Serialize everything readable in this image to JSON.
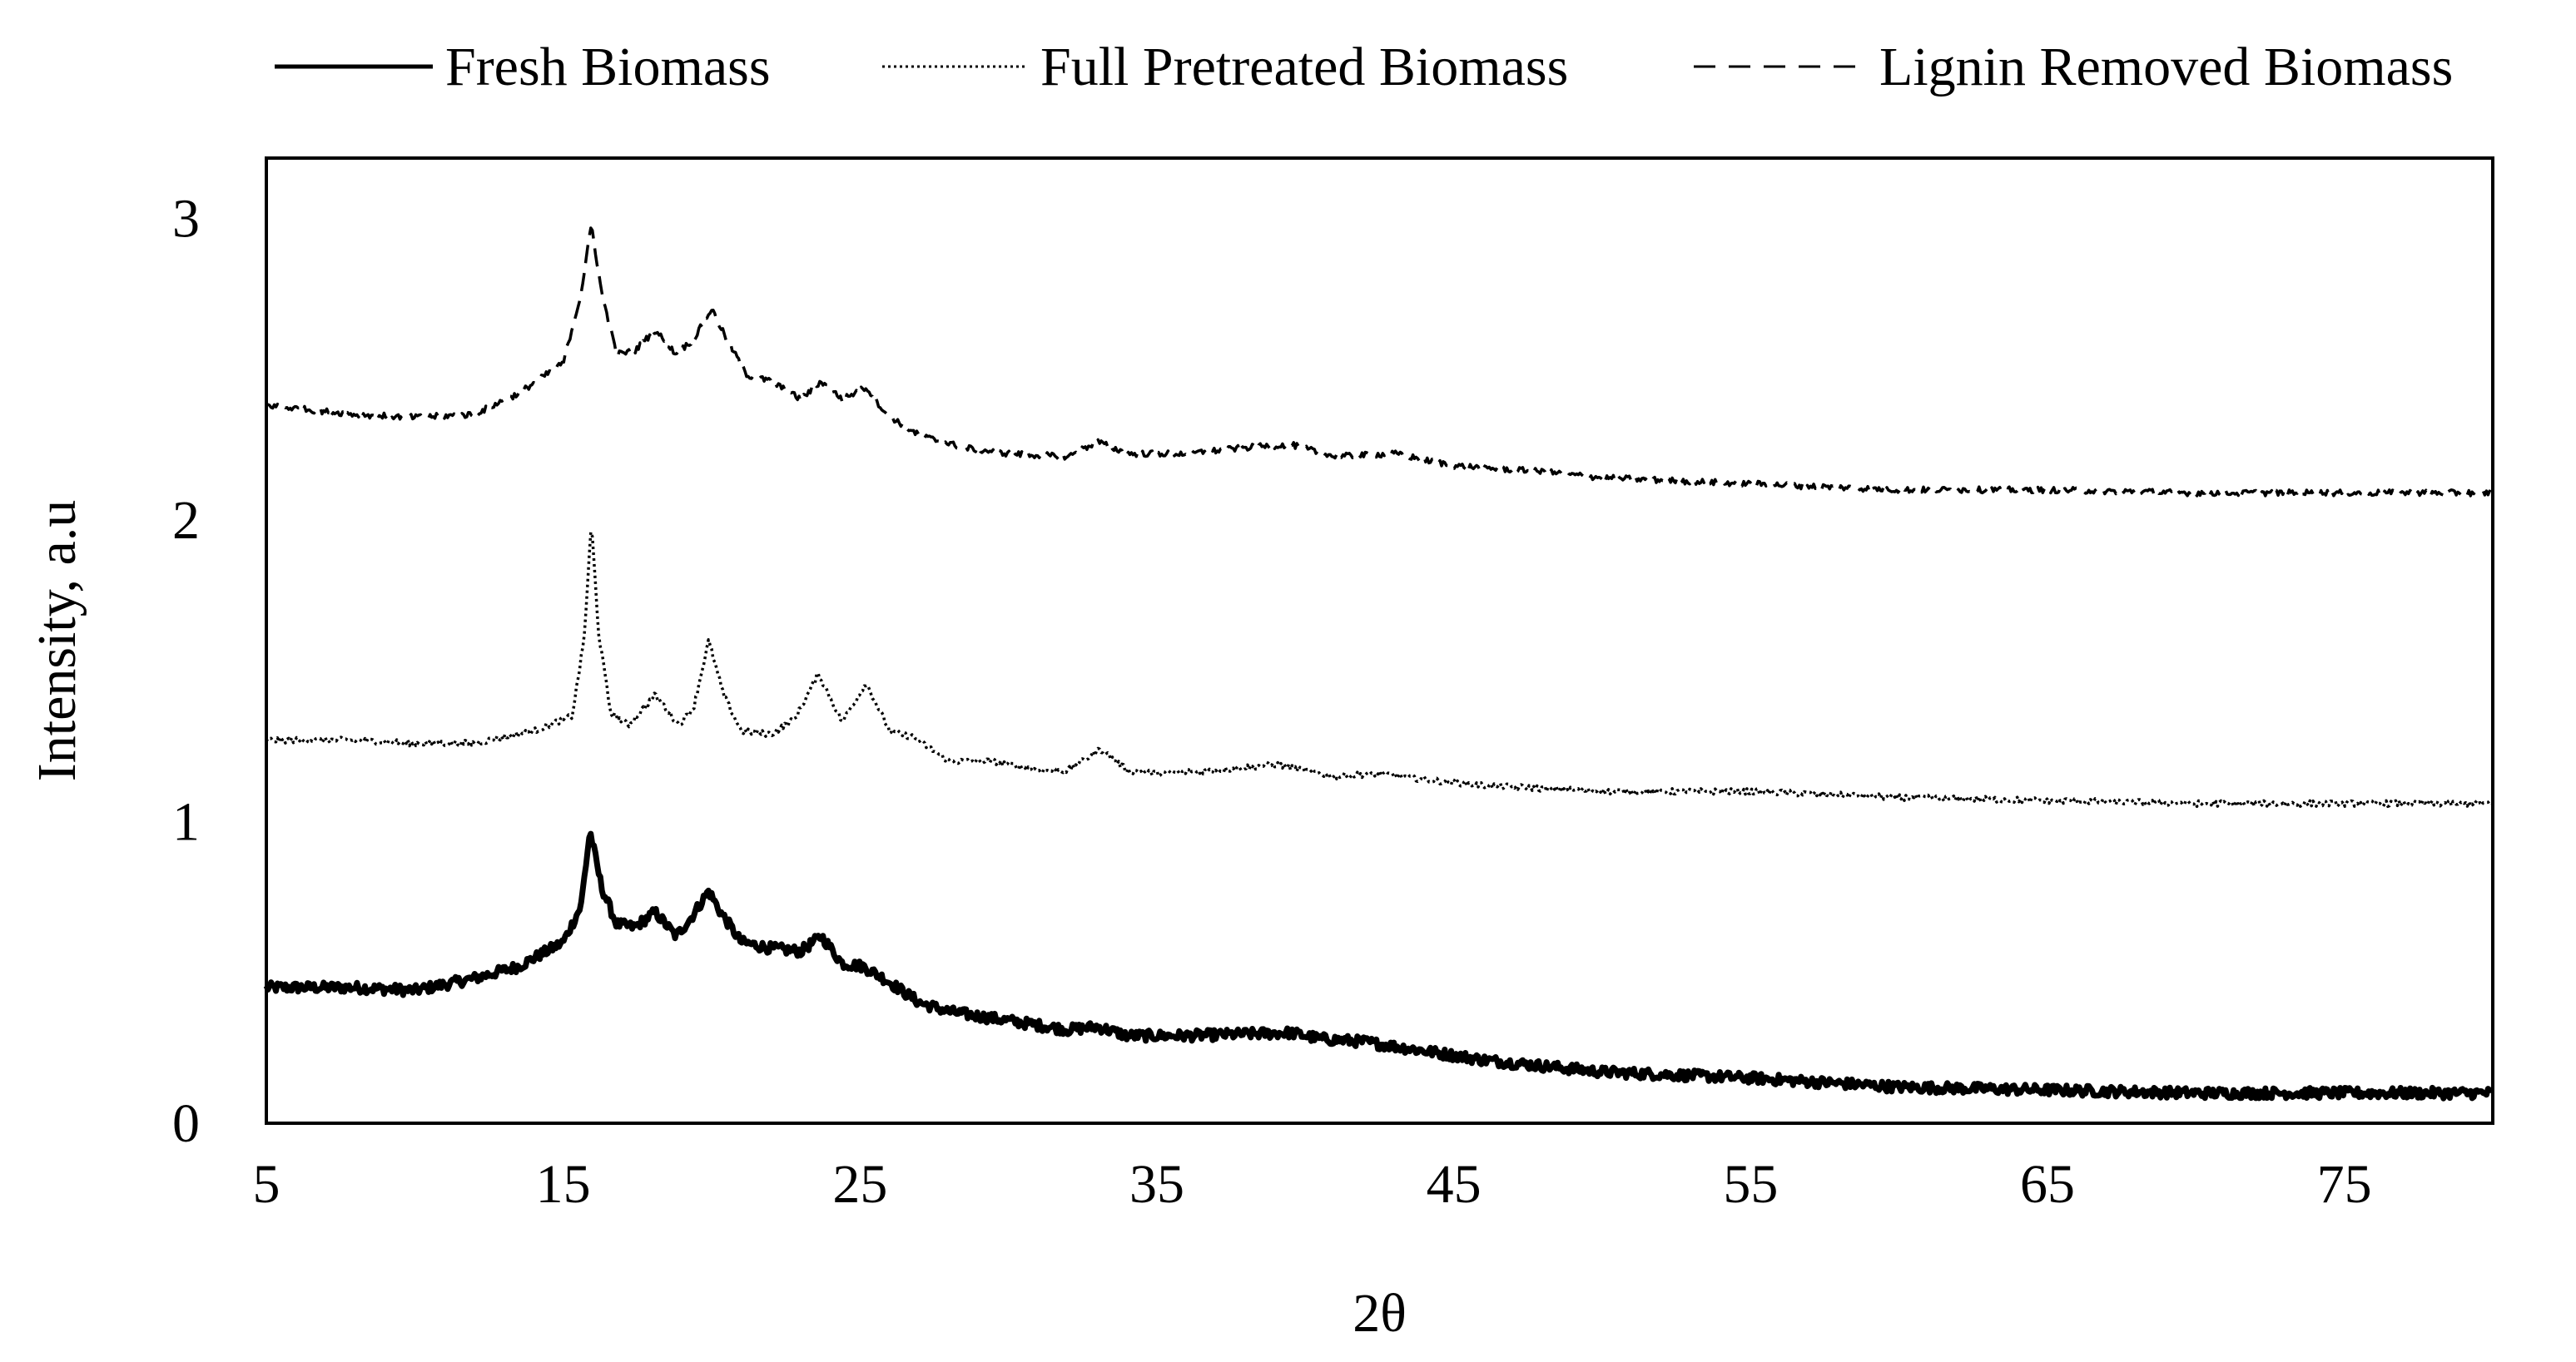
{
  "chart_data": {
    "type": "line",
    "title": "",
    "xlabel": "2θ",
    "ylabel": "Intensity, a.u",
    "xlim": [
      5,
      80
    ],
    "ylim": [
      0,
      3.2
    ],
    "xticks": [
      "5",
      "15",
      "25",
      "35",
      "45",
      "55",
      "65",
      "75"
    ],
    "yticks": [
      "0",
      "1",
      "2",
      "3"
    ],
    "grid": false,
    "legend_position": "top",
    "series": [
      {
        "name": "Fresh Biomass",
        "style": "solid",
        "thick": true,
        "color": "#000000",
        "x": [
          5,
          8,
          10,
          12,
          13.5,
          15,
          15.6,
          15.9,
          16.3,
          16.8,
          17.4,
          18.1,
          18.8,
          19.3,
          19.9,
          20.3,
          21,
          22,
          23,
          23.7,
          24.4,
          25.1,
          25.8,
          27,
          28,
          30,
          32,
          33,
          34,
          36,
          39.5,
          40.5,
          42,
          44,
          46,
          48,
          50,
          55,
          60,
          65,
          70,
          75,
          80
        ],
        "y": [
          0.45,
          0.45,
          0.44,
          0.48,
          0.52,
          0.6,
          0.72,
          0.97,
          0.78,
          0.66,
          0.65,
          0.7,
          0.62,
          0.68,
          0.77,
          0.7,
          0.6,
          0.58,
          0.57,
          0.62,
          0.53,
          0.52,
          0.48,
          0.4,
          0.37,
          0.34,
          0.31,
          0.32,
          0.29,
          0.29,
          0.3,
          0.28,
          0.27,
          0.24,
          0.21,
          0.19,
          0.17,
          0.15,
          0.12,
          0.11,
          0.1,
          0.1,
          0.1
        ]
      },
      {
        "name": "Full Pretreated Biomass",
        "style": "dotted",
        "thick": false,
        "color": "#000000",
        "x": [
          5,
          8,
          10,
          12,
          13,
          14,
          15.3,
          15.7,
          15.95,
          16.2,
          16.6,
          17.2,
          18.1,
          18.9,
          19.4,
          19.9,
          20.4,
          21,
          22,
          22.8,
          23.6,
          24.4,
          25.2,
          26,
          26.8,
          28,
          29.5,
          31,
          32,
          33.1,
          34,
          35,
          37,
          39,
          40,
          41,
          42.5,
          44,
          46,
          48,
          50,
          55,
          60,
          65,
          70,
          75,
          80
        ],
        "y": [
          1.27,
          1.27,
          1.26,
          1.26,
          1.28,
          1.3,
          1.35,
          1.6,
          1.99,
          1.62,
          1.36,
          1.32,
          1.42,
          1.32,
          1.38,
          1.6,
          1.42,
          1.3,
          1.29,
          1.34,
          1.49,
          1.33,
          1.46,
          1.3,
          1.28,
          1.2,
          1.2,
          1.17,
          1.17,
          1.24,
          1.17,
          1.16,
          1.17,
          1.19,
          1.17,
          1.15,
          1.16,
          1.14,
          1.12,
          1.11,
          1.1,
          1.1,
          1.08,
          1.07,
          1.06,
          1.06,
          1.06
        ]
      },
      {
        "name": "Lignin Removed Biomass",
        "style": "dashed",
        "thick": false,
        "color": "#000000",
        "x": [
          5,
          8,
          10,
          12,
          13.5,
          15,
          15.6,
          15.95,
          16.3,
          16.8,
          17.4,
          18.1,
          18.8,
          19.4,
          20,
          20.5,
          21.2,
          22,
          23,
          23.7,
          24.4,
          25.2,
          25.9,
          27,
          28.5,
          30,
          32,
          33,
          34,
          36,
          38,
          39.5,
          41,
          43,
          45,
          48,
          50,
          55,
          60,
          65,
          70,
          75,
          80
        ],
        "y": [
          2.38,
          2.35,
          2.34,
          2.35,
          2.42,
          2.52,
          2.75,
          2.98,
          2.75,
          2.55,
          2.56,
          2.63,
          2.55,
          2.6,
          2.7,
          2.6,
          2.48,
          2.46,
          2.4,
          2.46,
          2.4,
          2.44,
          2.35,
          2.28,
          2.24,
          2.22,
          2.21,
          2.26,
          2.22,
          2.22,
          2.24,
          2.25,
          2.21,
          2.22,
          2.18,
          2.16,
          2.14,
          2.12,
          2.1,
          2.1,
          2.09,
          2.09,
          2.09
        ]
      }
    ]
  }
}
